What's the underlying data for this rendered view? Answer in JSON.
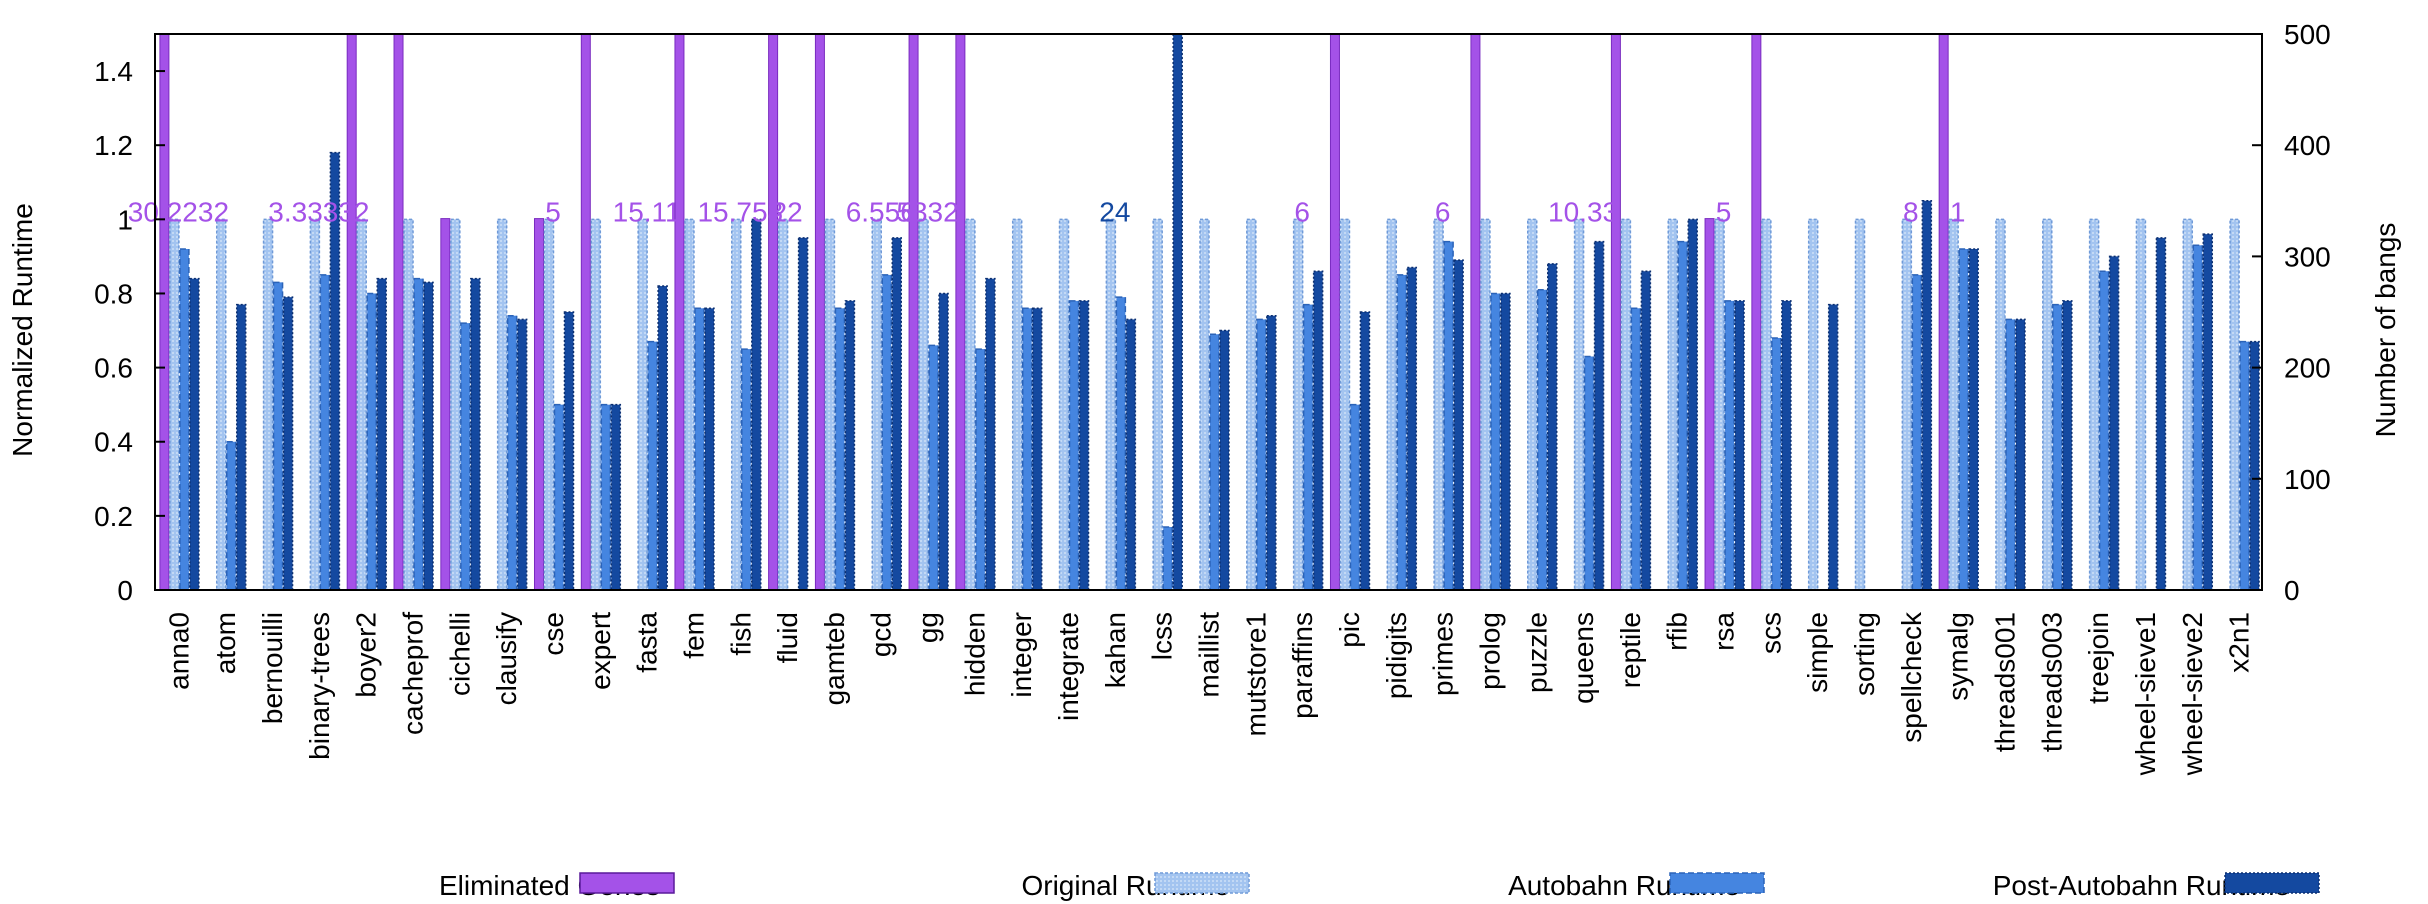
{
  "chart_data": {
    "type": "bar",
    "title": "",
    "ylabel": "Normalized Runtime",
    "y2label": "Number of bangs",
    "ylim": [
      0,
      1.5
    ],
    "y2lim": [
      0,
      500
    ],
    "yticks": [
      "0",
      "0.2",
      "0.4",
      "0.6",
      "0.8",
      "1",
      "1.2",
      "1.4"
    ],
    "y2ticks": [
      "0",
      "100",
      "200",
      "300",
      "400",
      "500"
    ],
    "categories": [
      "anna0",
      "atom",
      "bernouilli",
      "binary-trees",
      "boyer2",
      "cacheprof",
      "cichelli",
      "clausify",
      "cse",
      "expert",
      "fasta",
      "fem",
      "fish",
      "fluid",
      "gamteb",
      "gcd",
      "gg",
      "hidden",
      "integer",
      "integrate",
      "kahan",
      "lcss",
      "maillist",
      "mutstore1",
      "paraffins",
      "pic",
      "pidigits",
      "primes",
      "prolog",
      "puzzle",
      "queens",
      "reptile",
      "rfib",
      "rsa",
      "scs",
      "simple",
      "sorting",
      "spellcheck",
      "symalg",
      "threads001",
      "threads003",
      "treejoin",
      "wheel-sieve1",
      "wheel-sieve2",
      "x2n1"
    ],
    "series": [
      {
        "name": "Eliminated Genes",
        "axis": "y2",
        "color": "#a452e8",
        "values": [
          500,
          0,
          0,
          0,
          500,
          500,
          334,
          0,
          334,
          500,
          0,
          500,
          0,
          500,
          500,
          0,
          500,
          500,
          0,
          0,
          0,
          0,
          0,
          0,
          0,
          500,
          0,
          0,
          500,
          0,
          0,
          500,
          0,
          334,
          500,
          0,
          0,
          0,
          500,
          0,
          0,
          0,
          0,
          0,
          0
        ]
      },
      {
        "name": "Original Runtime",
        "axis": "y",
        "color": "#a3c4f0",
        "values": [
          1,
          1,
          1,
          1,
          1,
          1,
          1,
          1,
          1,
          1,
          1,
          1,
          1,
          1,
          1,
          1,
          1,
          1,
          1,
          1,
          1,
          1,
          1,
          1,
          1,
          1,
          1,
          1,
          1,
          1,
          1,
          1,
          1,
          1,
          1,
          1,
          1,
          1,
          1,
          1,
          1,
          1,
          1,
          1,
          1
        ]
      },
      {
        "name": "Autobahn Runtime",
        "axis": "y",
        "color": "#4585e0",
        "values": [
          0.92,
          0.4,
          0.83,
          0.85,
          0.8,
          0.84,
          0.72,
          0.74,
          0.5,
          0.5,
          0.67,
          0.76,
          0.65,
          null,
          0.76,
          0.85,
          0.66,
          0.65,
          0.76,
          0.78,
          0.79,
          0.17,
          0.69,
          0.73,
          0.77,
          0.5,
          0.85,
          0.94,
          0.8,
          0.81,
          0.63,
          0.76,
          0.94,
          0.78,
          0.68,
          null,
          null,
          0.85,
          0.92,
          0.73,
          0.77,
          0.86,
          null,
          0.93,
          0.67
        ]
      },
      {
        "name": "Post-Autobahn Runtime",
        "axis": "y",
        "color": "#1449a0",
        "values": [
          0.84,
          0.77,
          0.79,
          1.18,
          0.84,
          0.83,
          0.84,
          0.73,
          0.75,
          0.5,
          0.82,
          0.76,
          1.0,
          0.95,
          0.78,
          0.95,
          0.8,
          0.84,
          0.76,
          0.78,
          0.73,
          1.5,
          0.7,
          0.74,
          0.86,
          0.75,
          0.87,
          0.89,
          0.8,
          0.88,
          0.94,
          0.86,
          1.0,
          0.78,
          0.78,
          0.77,
          null,
          1.05,
          0.92,
          0.73,
          0.78,
          0.9,
          0.95,
          0.96,
          0.67
        ]
      }
    ],
    "annotations": [
      {
        "category": "anna0",
        "text": "30.2232",
        "color": "#a452e8"
      },
      {
        "category": "binary-trees",
        "text": "3.33332",
        "color": "#a452e8"
      },
      {
        "category": "cse",
        "text": "5",
        "color": "#a452e8"
      },
      {
        "category": "fasta",
        "text": "15.11",
        "color": "#a452e8"
      },
      {
        "category": "fish",
        "text": "15.758",
        "color": "#a452e8"
      },
      {
        "category": "fluid",
        "text": "22",
        "color": "#a452e8"
      },
      {
        "category": "gcd",
        "text": "6.556",
        "color": "#a452e8"
      },
      {
        "category": "gg",
        "text": "5332",
        "color": "#a452e8"
      },
      {
        "category": "kahan",
        "text": "24",
        "color": "#1449a0"
      },
      {
        "category": "paraffins",
        "text": "6",
        "color": "#a452e8"
      },
      {
        "category": "primes",
        "text": "6",
        "color": "#a452e8"
      },
      {
        "category": "queens",
        "text": "10.33",
        "color": "#a452e8"
      },
      {
        "category": "rsa",
        "text": "5",
        "color": "#a452e8"
      },
      {
        "category": "spellcheck",
        "text": "8",
        "color": "#a452e8"
      },
      {
        "category": "symalg",
        "text": "1",
        "color": "#a452e8"
      }
    ],
    "legend_position": "bottom"
  }
}
